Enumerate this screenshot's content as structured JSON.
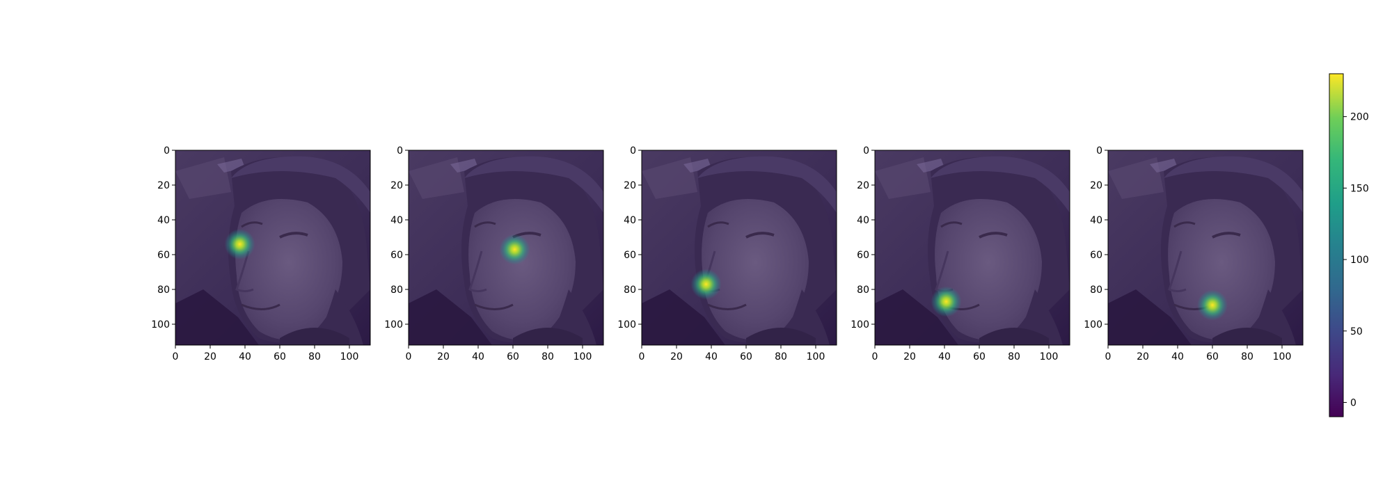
{
  "chart_data": {
    "type": "heatmap",
    "description_note": "",
    "panels": [
      {
        "hotspot": {
          "x": 37,
          "y": 54
        }
      },
      {
        "hotspot": {
          "x": 61,
          "y": 57
        }
      },
      {
        "hotspot": {
          "x": 37,
          "y": 77
        }
      },
      {
        "hotspot": {
          "x": 41,
          "y": 87
        }
      },
      {
        "hotspot": {
          "x": 60,
          "y": 89
        }
      }
    ],
    "xlim": [
      0,
      112
    ],
    "ylim": [
      112,
      0
    ],
    "xticks": [
      0,
      20,
      40,
      60,
      80,
      100
    ],
    "yticks": [
      0,
      20,
      40,
      60,
      80,
      100
    ],
    "colorbar": {
      "colormap": "viridis",
      "range": [
        -10,
        230
      ],
      "ticks": [
        0,
        50,
        100,
        150,
        200
      ]
    },
    "colors": {
      "overlay_base": "#3b2a55",
      "hot": "#fde725",
      "warm": "#35b779",
      "cool": "#21918c"
    }
  }
}
